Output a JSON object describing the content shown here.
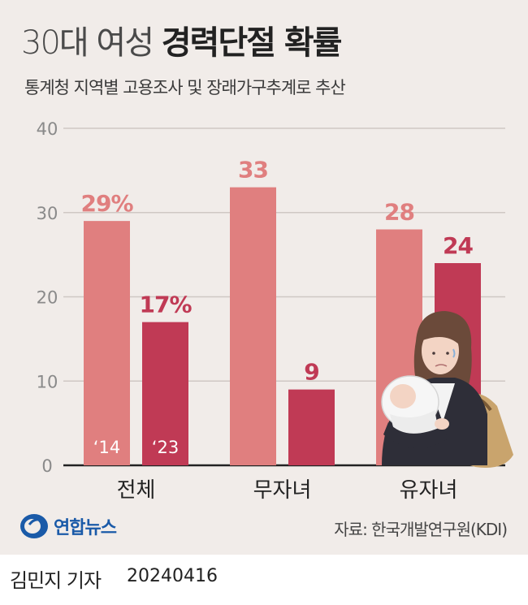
{
  "header": {
    "title_light": "30대 여성",
    "title_bold": "경력단절 확률",
    "subtitle": "통계청 지역별 고용조사 및 장래가구추계로 추산"
  },
  "chart_data": {
    "type": "bar",
    "categories": [
      "전체",
      "무자녀",
      "유자녀"
    ],
    "series": [
      {
        "name": "‘14",
        "values": [
          29,
          33,
          28
        ],
        "labels": [
          "29%",
          "33",
          "28"
        ],
        "color": "#e07f7f"
      },
      {
        "name": "‘23",
        "values": [
          17,
          9,
          24
        ],
        "labels": [
          "17%",
          "9",
          "24"
        ],
        "color": "#c03a55"
      }
    ],
    "ylim": [
      0,
      40
    ],
    "yticks": [
      0,
      10,
      20,
      30,
      40
    ],
    "grid": true,
    "label_colors": {
      "‘14": "#e07f7f",
      "‘23": "#c03a55"
    }
  },
  "source": "자료: 한국개발연구원(KDI)",
  "logo": {
    "name": "연합뉴스"
  },
  "footer": {
    "reporter": "김민지 기자",
    "date": "20240416"
  },
  "icons": {
    "illustration": "mother-holding-baby-illustration",
    "logo": "yonhap-logo-icon"
  }
}
